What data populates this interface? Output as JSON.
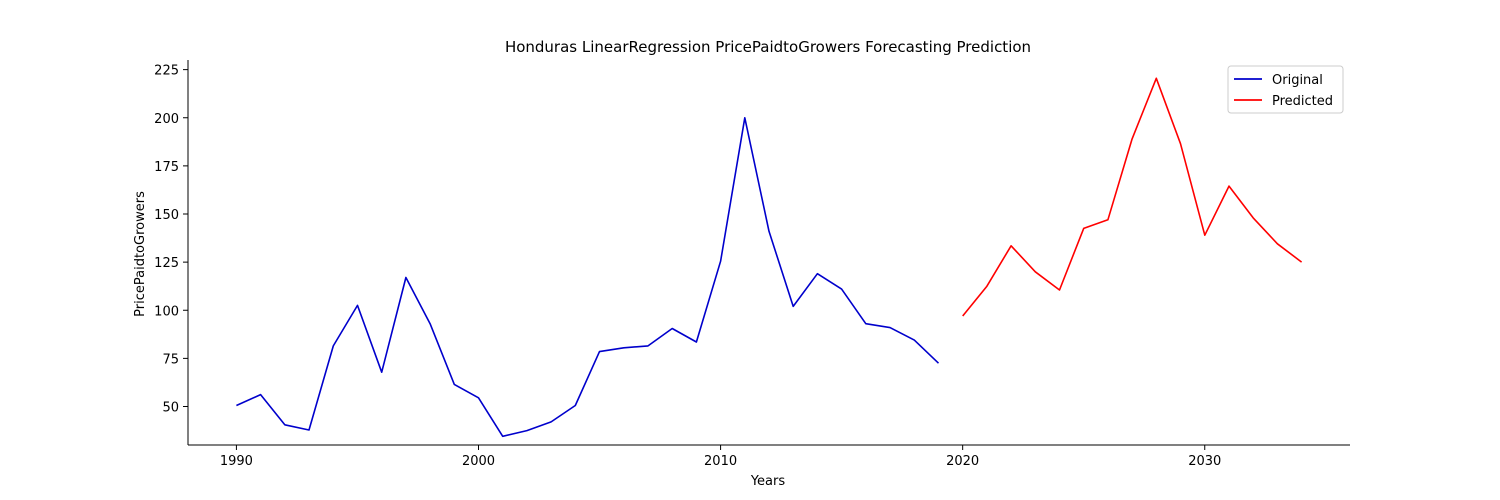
{
  "chart_data": {
    "type": "line",
    "title": "Honduras LinearRegression PricePaidtoGrowers Forecasting Prediction",
    "xlabel": "Years",
    "ylabel": "PricePaidtoGrowers",
    "xlim": [
      1988,
      2036
    ],
    "ylim": [
      30,
      230
    ],
    "xticks": [
      1990,
      2000,
      2010,
      2020,
      2030
    ],
    "yticks": [
      50,
      75,
      100,
      125,
      150,
      175,
      200,
      225
    ],
    "grid": false,
    "legend": "top-right",
    "series": [
      {
        "name": "Original",
        "color": "#0000cc",
        "x": [
          1990,
          1991,
          1992,
          1993,
          1994,
          1995,
          1996,
          1997,
          1998,
          1999,
          2000,
          2001,
          2002,
          2003,
          2004,
          2005,
          2006,
          2007,
          2008,
          2009,
          2010,
          2011,
          2012,
          2013,
          2014,
          2015,
          2016,
          2017,
          2018,
          2019
        ],
        "y": [
          50.5,
          56.2,
          40.5,
          37.8,
          81.5,
          102.5,
          67.8,
          117,
          93,
          61.5,
          54.5,
          34.5,
          37.5,
          42,
          50.5,
          78.5,
          80.5,
          81.5,
          90.5,
          83.5,
          125.5,
          200,
          141,
          102,
          119,
          111,
          93,
          91,
          84.5,
          72.5
        ]
      },
      {
        "name": "Predicted",
        "color": "#ff0000",
        "x": [
          2020,
          2021,
          2022,
          2023,
          2024,
          2025,
          2026,
          2027,
          2028,
          2029,
          2030,
          2031,
          2032,
          2033,
          2034
        ],
        "y": [
          97,
          112.5,
          133.5,
          120,
          110.5,
          142.5,
          147,
          189,
          220.5,
          186.5,
          139,
          164.5,
          148,
          134.5,
          125
        ]
      }
    ]
  }
}
